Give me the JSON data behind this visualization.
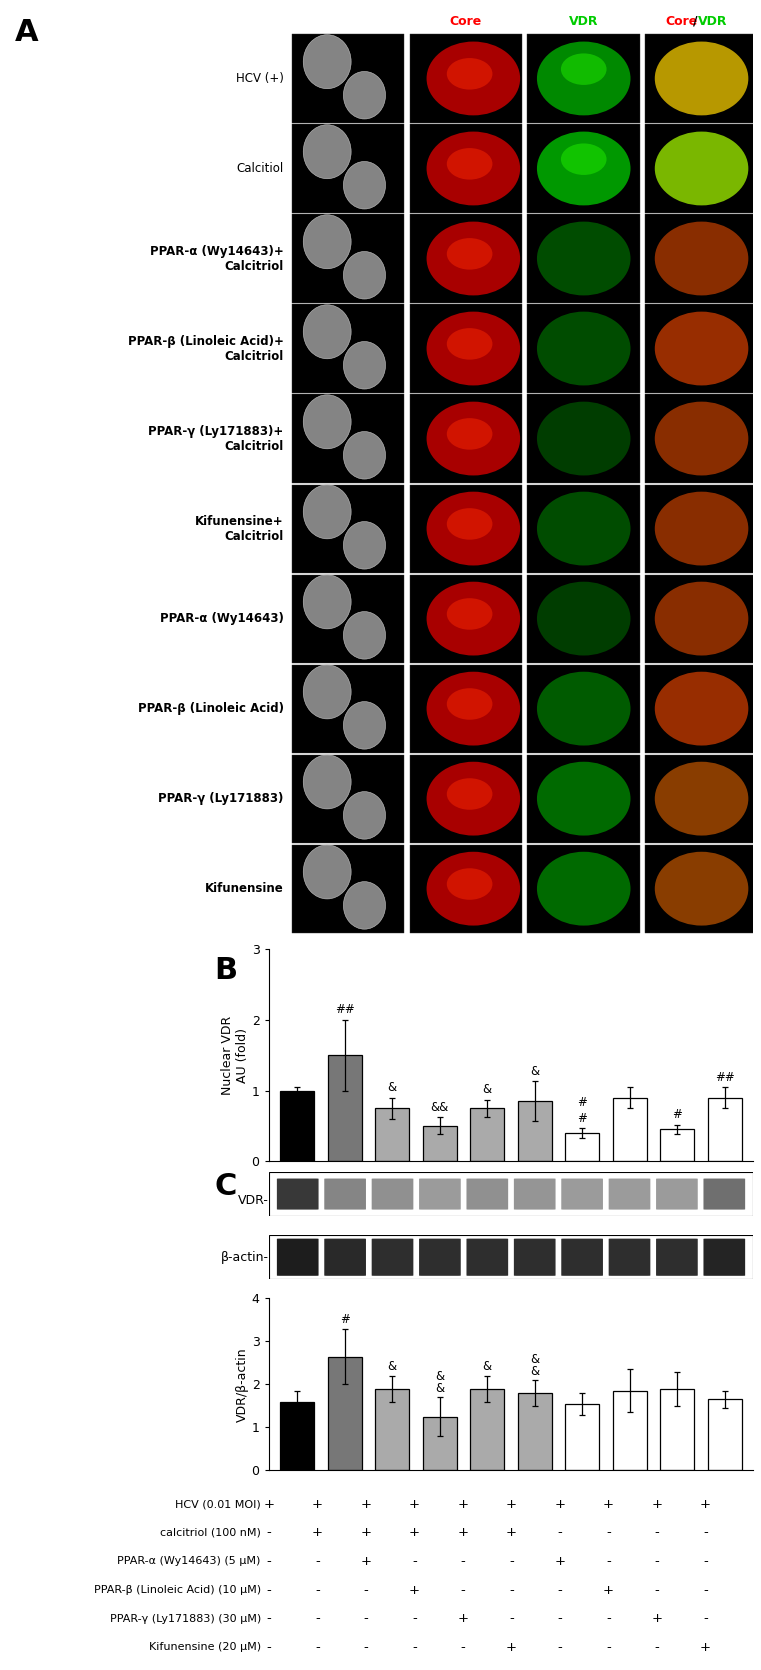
{
  "panel_A_rows": [
    "HCV (+)",
    "Calcitiol",
    "PPAR-α (Wy14643)+\nCalcitriol",
    "PPAR-β (Linoleic Acid)+\nCalcitriol",
    "PPAR-γ (Ly171883)+\nCalcitriol",
    "Kifunensine+\nCalcitriol",
    "PPAR-α (Wy14643)",
    "PPAR-β (Linoleic Acid)",
    "PPAR-γ (Ly171883)",
    "Kifunensine"
  ],
  "panel_B_values": [
    1.0,
    1.5,
    0.75,
    0.5,
    0.75,
    0.85,
    0.4,
    0.9,
    0.45,
    0.9
  ],
  "panel_B_errors": [
    0.05,
    0.5,
    0.15,
    0.12,
    0.12,
    0.28,
    0.07,
    0.15,
    0.07,
    0.15
  ],
  "panel_B_colors": [
    "#000000",
    "#777777",
    "#aaaaaa",
    "#aaaaaa",
    "#aaaaaa",
    "#aaaaaa",
    "#ffffff",
    "#ffffff",
    "#ffffff",
    "#ffffff"
  ],
  "panel_B_annot_top": [
    "",
    "##",
    "&",
    "&&",
    "&",
    "&",
    "#\n#",
    "",
    "#",
    "##"
  ],
  "panel_B_ylabel": "Nuclear VDR\nAU (fold)",
  "panel_B_ylim": [
    0,
    3
  ],
  "panel_B_yticks": [
    0,
    1,
    2,
    3
  ],
  "panel_C_bar_values": [
    1.6,
    2.65,
    1.9,
    1.25,
    1.9,
    1.8,
    1.55,
    1.85,
    1.9,
    1.65
  ],
  "panel_C_bar_errors": [
    0.25,
    0.65,
    0.3,
    0.45,
    0.3,
    0.3,
    0.25,
    0.5,
    0.4,
    0.2
  ],
  "panel_C_colors": [
    "#000000",
    "#777777",
    "#aaaaaa",
    "#aaaaaa",
    "#aaaaaa",
    "#aaaaaa",
    "#ffffff",
    "#ffffff",
    "#ffffff",
    "#ffffff"
  ],
  "panel_C_annot": [
    "",
    "#",
    "&",
    "&",
    "&",
    "&",
    "",
    "",
    "",
    ""
  ],
  "panel_C_annot2": [
    "",
    "",
    "",
    "&",
    "",
    "&",
    "",
    "",
    "",
    ""
  ],
  "panel_C_ylabel": "VDR/β-actin",
  "panel_C_ylim": [
    0,
    4
  ],
  "panel_C_yticks": [
    0,
    1,
    2,
    3,
    4
  ],
  "table_rows": [
    "HCV (0.01 MOI)",
    "calcitriol (100 nM)",
    "PPAR-α (Wy14643) (5 μM)",
    "PPAR-β (Linoleic Acid) (10 μM)",
    "PPAR-γ (Ly171883) (30 μM)",
    "Kifunensine (20 μM)"
  ],
  "table_data": [
    [
      "+",
      "+",
      "+",
      "+",
      "+",
      "+",
      "+",
      "+",
      "+",
      "+"
    ],
    [
      "-",
      "+",
      "+",
      "+",
      "+",
      "+",
      "-",
      "-",
      "-",
      "-"
    ],
    [
      "-",
      "-",
      "+",
      "-",
      "-",
      "-",
      "+",
      "-",
      "-",
      "-"
    ],
    [
      "-",
      "-",
      "-",
      "+",
      "-",
      "-",
      "-",
      "+",
      "-",
      "-"
    ],
    [
      "-",
      "-",
      "-",
      "-",
      "+",
      "-",
      "-",
      "-",
      "+",
      "-"
    ],
    [
      "-",
      "-",
      "-",
      "-",
      "-",
      "+",
      "-",
      "-",
      "-",
      "+"
    ]
  ]
}
